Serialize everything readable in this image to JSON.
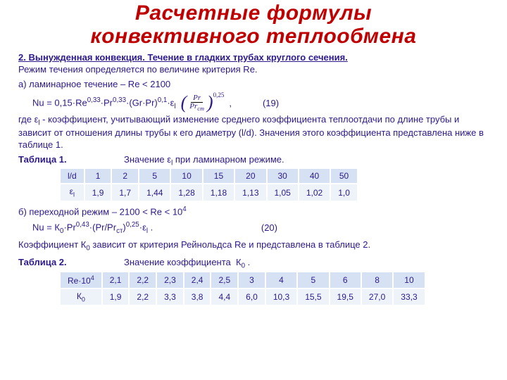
{
  "title_line1": "Расчетные формулы",
  "title_line2": "конвективного теплообмена",
  "section_hdr": "2. Вынужденная конвекция.   Течение в гладких трубах круглого сечения.",
  "regime_intro": "Режим течения определяется по величине критерия Re.",
  "laminar_line": "а) ламинарное течение – Re < 2100",
  "formula19": "Nu = 0,15·Re⁰٫³³·Pr⁰٫³³·(Gr·Pr)⁰٫¹·εl",
  "frac_exp": "0,25",
  "frac_num": "Pr",
  "frac_den": "Prст",
  "eq19_num": "(19)",
  "eps_text": "где εl - коэффициент, учитывающий изменение среднего коэффициента теплоотдачи по длине трубы и зависит от отношения длины трубы к его диаметру (l/d). Значения этого коэффициента представлена ниже в таблице 1.",
  "tbl1_label": "Таблица 1.",
  "tbl1_caption": "Значение εl при ламинарном режиме.",
  "table1": {
    "row_labels": [
      "l/d",
      "εl"
    ],
    "headers": [
      "1",
      "2",
      "5",
      "10",
      "15",
      "20",
      "30",
      "40",
      "50"
    ],
    "values": [
      "1,9",
      "1,7",
      "1,44",
      "1,28",
      "1,18",
      "1,13",
      "1,05",
      "1,02",
      "1,0"
    ],
    "header_bg": "#d6e2f4",
    "cell_bg": "#eef3fa"
  },
  "trans_line": "б) переходной режим – 2100 < Re < 10⁴",
  "formula20_pre": "Nu = К₀·Pr⁰٫⁴³·(Pr/Prст)⁰٫²⁵·εl .",
  "eq20_num": "(20)",
  "k0_text": "Коэффициент К₀ зависит от критерия Рейнольдса Re и представлена в таблице 2.",
  "tbl2_label": "Таблица 2.",
  "tbl2_caption": "Значение коэффициента  К₀ .",
  "table2": {
    "row_labels": [
      "Re·10⁴",
      "К₀"
    ],
    "headers": [
      "2,1",
      "2,2",
      "2,3",
      "2,4",
      "2,5",
      "3",
      "4",
      "5",
      "6",
      "8",
      "10"
    ],
    "values": [
      "1,9",
      "2,2",
      "3,3",
      "3,8",
      "4,4",
      "6,0",
      "10,3",
      "15,5",
      "19,5",
      "27,0",
      "33,3"
    ],
    "header_bg": "#d6e2f4",
    "cell_bg": "#eef3fa"
  }
}
